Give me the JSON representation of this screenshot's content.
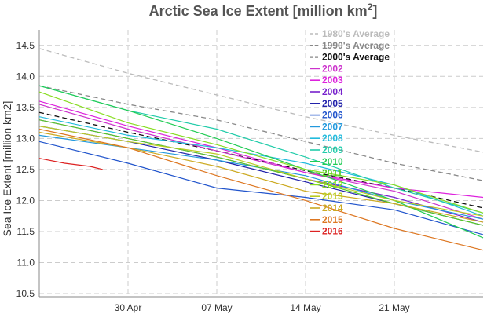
{
  "chart_data": {
    "type": "line",
    "title": "Arctic Sea Ice Extent [million km",
    "title_sup": "2",
    "title_end": "]",
    "ylabel": "Sea Ice Extent [million km2]",
    "xlabel": "",
    "ylim": [
      10.45,
      14.75
    ],
    "yticks": [
      10.5,
      11.0,
      11.5,
      12.0,
      12.5,
      13.0,
      13.5,
      14.0,
      14.5
    ],
    "ytick_labels": [
      "10.5",
      "11.0",
      "11.5",
      "12.0",
      "12.5",
      "13.0",
      "13.5",
      "14.0",
      "14.5"
    ],
    "xlim": [
      "2016-04-23",
      "2016-05-28"
    ],
    "xticks": [
      "2016-04-30",
      "2016-05-07",
      "2016-05-14",
      "2016-05-21"
    ],
    "xtick_labels": [
      "30 Apr",
      "07 May",
      "14 May",
      "21 May"
    ],
    "grid": true,
    "legend_position": "top-right",
    "series": [
      {
        "name": "1980's Average",
        "color": "#bbbbbb",
        "dash": true,
        "x": [
          "2016-04-23",
          "2016-04-30",
          "2016-05-07",
          "2016-05-14",
          "2016-05-21",
          "2016-05-28"
        ],
        "values": [
          14.45,
          14.05,
          13.7,
          13.35,
          13.05,
          12.78
        ]
      },
      {
        "name": "1990's Average",
        "color": "#888888",
        "dash": true,
        "x": [
          "2016-04-23",
          "2016-04-30",
          "2016-05-07",
          "2016-05-14",
          "2016-05-21",
          "2016-05-28"
        ],
        "values": [
          13.85,
          13.55,
          13.3,
          12.95,
          12.6,
          12.32
        ]
      },
      {
        "name": "2000's Average",
        "color": "#111111",
        "dash": true,
        "x": [
          "2016-04-23",
          "2016-04-30",
          "2016-05-07",
          "2016-05-14",
          "2016-05-21",
          "2016-05-28"
        ],
        "values": [
          13.42,
          13.1,
          12.8,
          12.48,
          12.2,
          11.88
        ]
      },
      {
        "name": "2002",
        "color": "#cc33cc",
        "dash": false,
        "x": [
          "2016-04-23",
          "2016-04-30",
          "2016-05-07",
          "2016-05-14",
          "2016-05-21",
          "2016-05-28"
        ],
        "values": [
          13.55,
          13.15,
          12.8,
          12.45,
          12.15,
          11.7
        ]
      },
      {
        "name": "2003",
        "color": "#dd22dd",
        "dash": false,
        "x": [
          "2016-04-23",
          "2016-04-30",
          "2016-05-07",
          "2016-05-14",
          "2016-05-21",
          "2016-05-28"
        ],
        "values": [
          13.6,
          13.2,
          12.85,
          12.45,
          12.2,
          12.05
        ]
      },
      {
        "name": "2004",
        "color": "#7722cc",
        "dash": false,
        "x": [
          "2016-04-23",
          "2016-04-30",
          "2016-05-07",
          "2016-05-14",
          "2016-05-21",
          "2016-05-28"
        ],
        "values": [
          13.3,
          13.0,
          12.7,
          12.35,
          12.05,
          11.65
        ]
      },
      {
        "name": "2005",
        "color": "#2222aa",
        "dash": false,
        "x": [
          "2016-04-23",
          "2016-04-30",
          "2016-05-07",
          "2016-05-14",
          "2016-05-21",
          "2016-05-28"
        ],
        "values": [
          13.2,
          12.95,
          12.65,
          12.3,
          11.95,
          11.6
        ]
      },
      {
        "name": "2006",
        "color": "#2255cc",
        "dash": false,
        "x": [
          "2016-04-23",
          "2016-04-30",
          "2016-05-07",
          "2016-05-14",
          "2016-05-21",
          "2016-05-28"
        ],
        "values": [
          12.95,
          12.6,
          12.2,
          12.05,
          11.85,
          11.45
        ]
      },
      {
        "name": "2007",
        "color": "#2299dd",
        "dash": false,
        "x": [
          "2016-04-23",
          "2016-04-30",
          "2016-05-07",
          "2016-05-14",
          "2016-05-21",
          "2016-05-28"
        ],
        "values": [
          13.05,
          12.85,
          12.65,
          12.4,
          12.0,
          11.7
        ]
      },
      {
        "name": "2008",
        "color": "#22bbdd",
        "dash": false,
        "x": [
          "2016-04-23",
          "2016-04-30",
          "2016-05-07",
          "2016-05-14",
          "2016-05-21",
          "2016-05-28"
        ],
        "values": [
          13.35,
          13.05,
          12.85,
          12.6,
          12.25,
          11.75
        ]
      },
      {
        "name": "2009",
        "color": "#22ccaa",
        "dash": false,
        "x": [
          "2016-04-23",
          "2016-04-30",
          "2016-05-07",
          "2016-05-14",
          "2016-05-21",
          "2016-05-28"
        ],
        "values": [
          13.85,
          13.45,
          13.15,
          12.7,
          12.2,
          11.8
        ]
      },
      {
        "name": "2010",
        "color": "#22cc55",
        "dash": false,
        "x": [
          "2016-04-23",
          "2016-04-30",
          "2016-05-07",
          "2016-05-14",
          "2016-05-21",
          "2016-05-28"
        ],
        "values": [
          13.85,
          13.45,
          13.0,
          12.5,
          12.0,
          11.4
        ]
      },
      {
        "name": "2011",
        "color": "#55cc22",
        "dash": false,
        "x": [
          "2016-04-23",
          "2016-04-30",
          "2016-05-07",
          "2016-05-14",
          "2016-05-21",
          "2016-05-28"
        ],
        "values": [
          13.3,
          13.0,
          12.7,
          12.35,
          11.95,
          11.6
        ]
      },
      {
        "name": "2012",
        "color": "#88dd22",
        "dash": false,
        "x": [
          "2016-04-23",
          "2016-04-30",
          "2016-05-07",
          "2016-05-14",
          "2016-05-21",
          "2016-05-28"
        ],
        "values": [
          13.75,
          13.25,
          12.9,
          12.5,
          12.25,
          11.8
        ]
      },
      {
        "name": "2013",
        "color": "#bbcc22",
        "dash": false,
        "x": [
          "2016-04-23",
          "2016-04-30",
          "2016-05-07",
          "2016-05-14",
          "2016-05-21",
          "2016-05-28"
        ],
        "values": [
          13.2,
          12.95,
          12.75,
          12.35,
          12.0,
          11.75
        ]
      },
      {
        "name": "2014",
        "color": "#ccaa22",
        "dash": false,
        "x": [
          "2016-04-23",
          "2016-04-30",
          "2016-05-07",
          "2016-05-14",
          "2016-05-21",
          "2016-05-28"
        ],
        "values": [
          13.1,
          12.85,
          12.55,
          12.15,
          11.95,
          11.65
        ]
      },
      {
        "name": "2015",
        "color": "#dd7722",
        "dash": false,
        "x": [
          "2016-04-23",
          "2016-04-30",
          "2016-05-07",
          "2016-05-14",
          "2016-05-21",
          "2016-05-28"
        ],
        "values": [
          13.15,
          12.85,
          12.4,
          12.0,
          11.55,
          11.2
        ]
      },
      {
        "name": "2016",
        "color": "#dd2222",
        "dash": false,
        "x": [
          "2016-04-23",
          "2016-04-25",
          "2016-04-27",
          "2016-04-28"
        ],
        "values": [
          12.68,
          12.6,
          12.55,
          12.5
        ]
      }
    ]
  }
}
